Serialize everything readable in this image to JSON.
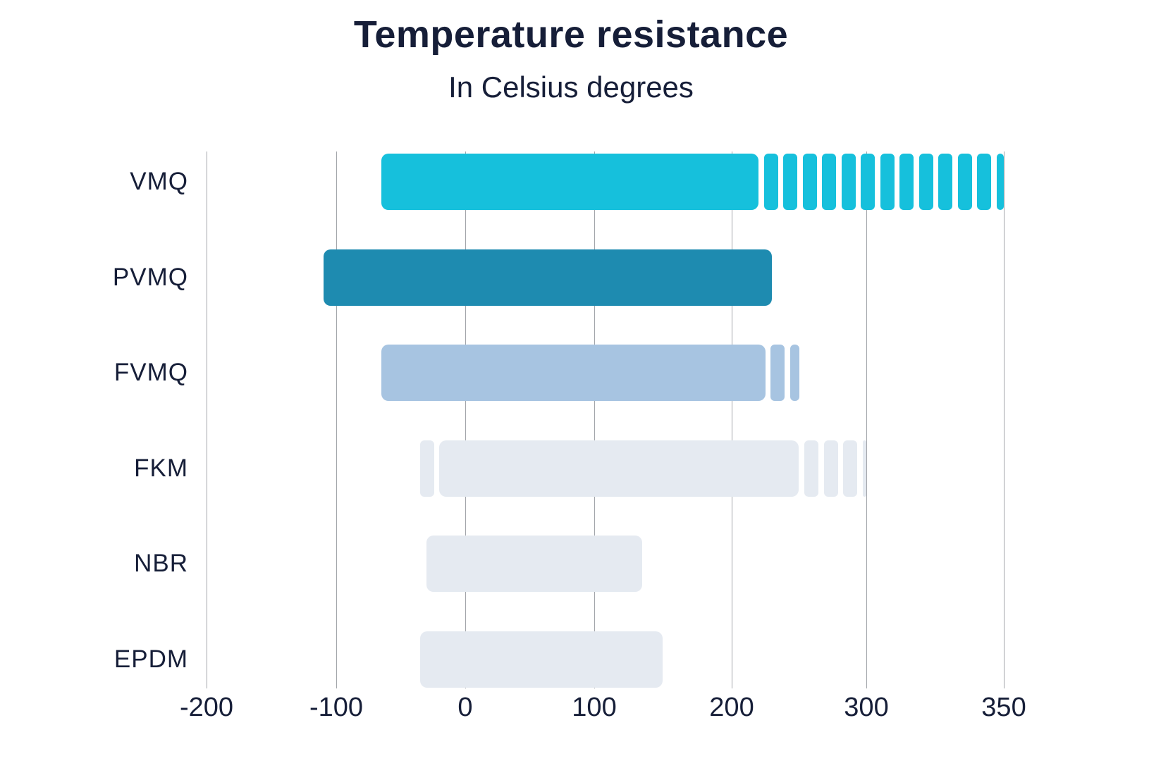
{
  "chart": {
    "title": "Temperature resistance",
    "subtitle": "In Celsius degrees"
  },
  "chart_data": {
    "type": "bar",
    "orientation": "horizontal",
    "title": "Temperature resistance",
    "subtitle": "In Celsius degrees",
    "axis": {
      "tick_values": [
        -200,
        -100,
        0,
        100,
        200,
        300,
        350
      ],
      "tick_labels": [
        "-200",
        "-100",
        "0",
        "100",
        "200",
        "300",
        "350"
      ],
      "layout_hint": "ticks equally spaced; non-linear scale: the 300 to 350 interval is drawn the same width as the 100-unit intervals",
      "gridlines": "vertical"
    },
    "categories": [
      "VMQ",
      "PVMQ",
      "FVMQ",
      "FKM",
      "NBR",
      "EPDM"
    ],
    "series": [
      {
        "label": "VMQ",
        "color": "#16c0dc",
        "segments": [
          {
            "from": -65,
            "to": 220,
            "style": "solid"
          },
          {
            "from": 220,
            "to": 350,
            "style": "striped"
          }
        ]
      },
      {
        "label": "PVMQ",
        "color": "#1e8bb0",
        "segments": [
          {
            "from": -110,
            "to": 230,
            "style": "solid"
          }
        ]
      },
      {
        "label": "FVMQ",
        "color": "#a7c4e1",
        "segments": [
          {
            "from": -65,
            "to": 225,
            "style": "solid"
          },
          {
            "from": 225,
            "to": 250,
            "style": "striped"
          }
        ]
      },
      {
        "label": "FKM",
        "color": "#e5eaf1",
        "segments": [
          {
            "from": -35,
            "to": -20,
            "style": "striped"
          },
          {
            "from": -20,
            "to": 250,
            "style": "solid"
          },
          {
            "from": 250,
            "to": 300,
            "style": "striped"
          }
        ]
      },
      {
        "label": "NBR",
        "color": "#e5eaf1",
        "segments": [
          {
            "from": -30,
            "to": 135,
            "style": "solid"
          }
        ]
      },
      {
        "label": "EPDM",
        "color": "#e5eaf1",
        "segments": [
          {
            "from": -35,
            "to": 150,
            "style": "solid"
          }
        ]
      }
    ],
    "colors": {
      "title_text": "#161e38",
      "axis_text": "#161e38",
      "gridline": "#a2a5aa",
      "background": "#ffffff"
    }
  }
}
